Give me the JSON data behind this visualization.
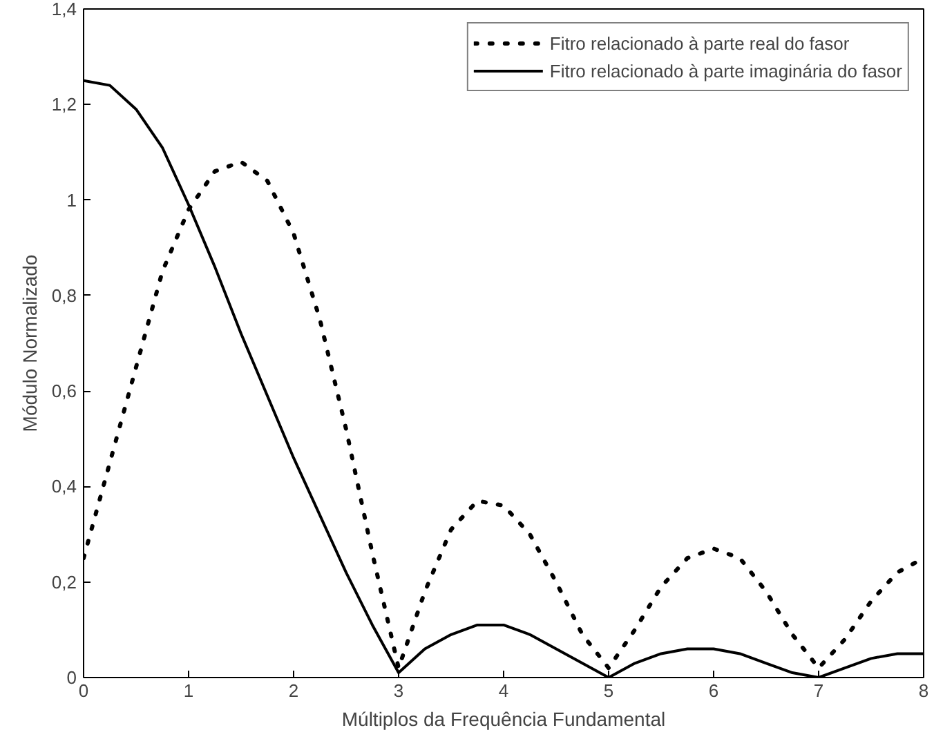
{
  "chart_data": {
    "type": "line",
    "xlabel": "Múltiplos da Frequência Fundamental",
    "ylabel": "Módulo Normalizado",
    "x": [
      0,
      0.25,
      0.5,
      0.75,
      1,
      1.25,
      1.5,
      1.75,
      2,
      2.25,
      2.5,
      2.75,
      3,
      3.25,
      3.5,
      3.75,
      4,
      4.25,
      4.5,
      4.75,
      5,
      5.25,
      5.5,
      5.75,
      6,
      6.25,
      6.5,
      6.75,
      7,
      7.25,
      7.5,
      7.75,
      8
    ],
    "series": [
      {
        "name": "Fitro relacionado à parte real do fasor",
        "color": "#000000",
        "line_style": "dotted",
        "values": [
          0.25,
          0.45,
          0.65,
          0.85,
          0.98,
          1.06,
          1.08,
          1.04,
          0.93,
          0.75,
          0.52,
          0.26,
          0.02,
          0.18,
          0.31,
          0.37,
          0.36,
          0.3,
          0.2,
          0.09,
          0.02,
          0.1,
          0.19,
          0.25,
          0.27,
          0.25,
          0.18,
          0.09,
          0.02,
          0.08,
          0.16,
          0.22,
          0.25
        ]
      },
      {
        "name": "Fitro relacionado à parte imaginária do fasor",
        "color": "#000000",
        "line_style": "solid",
        "values": [
          1.25,
          1.24,
          1.19,
          1.11,
          0.99,
          0.86,
          0.72,
          0.59,
          0.46,
          0.34,
          0.22,
          0.11,
          0.01,
          0.06,
          0.09,
          0.11,
          0.11,
          0.09,
          0.06,
          0.03,
          0.0,
          0.03,
          0.05,
          0.06,
          0.06,
          0.05,
          0.03,
          0.01,
          0.0,
          0.02,
          0.04,
          0.05,
          0.05
        ]
      }
    ],
    "xlim": [
      0,
      8
    ],
    "xticks": [
      0,
      1,
      2,
      3,
      4,
      5,
      6,
      7,
      8
    ],
    "ylim": [
      0,
      1.4
    ],
    "yticks": [
      0,
      {
        "value": 0.2,
        "label": "0,2"
      },
      {
        "value": 0.4,
        "label": "0,4"
      },
      {
        "value": 0.6,
        "label": "0,6"
      },
      {
        "value": 0.8,
        "label": "0,8"
      },
      1,
      {
        "value": 1.2,
        "label": "1,2"
      },
      {
        "value": 1.4,
        "label": "1,4"
      }
    ],
    "grid": false,
    "legend": "top right"
  }
}
